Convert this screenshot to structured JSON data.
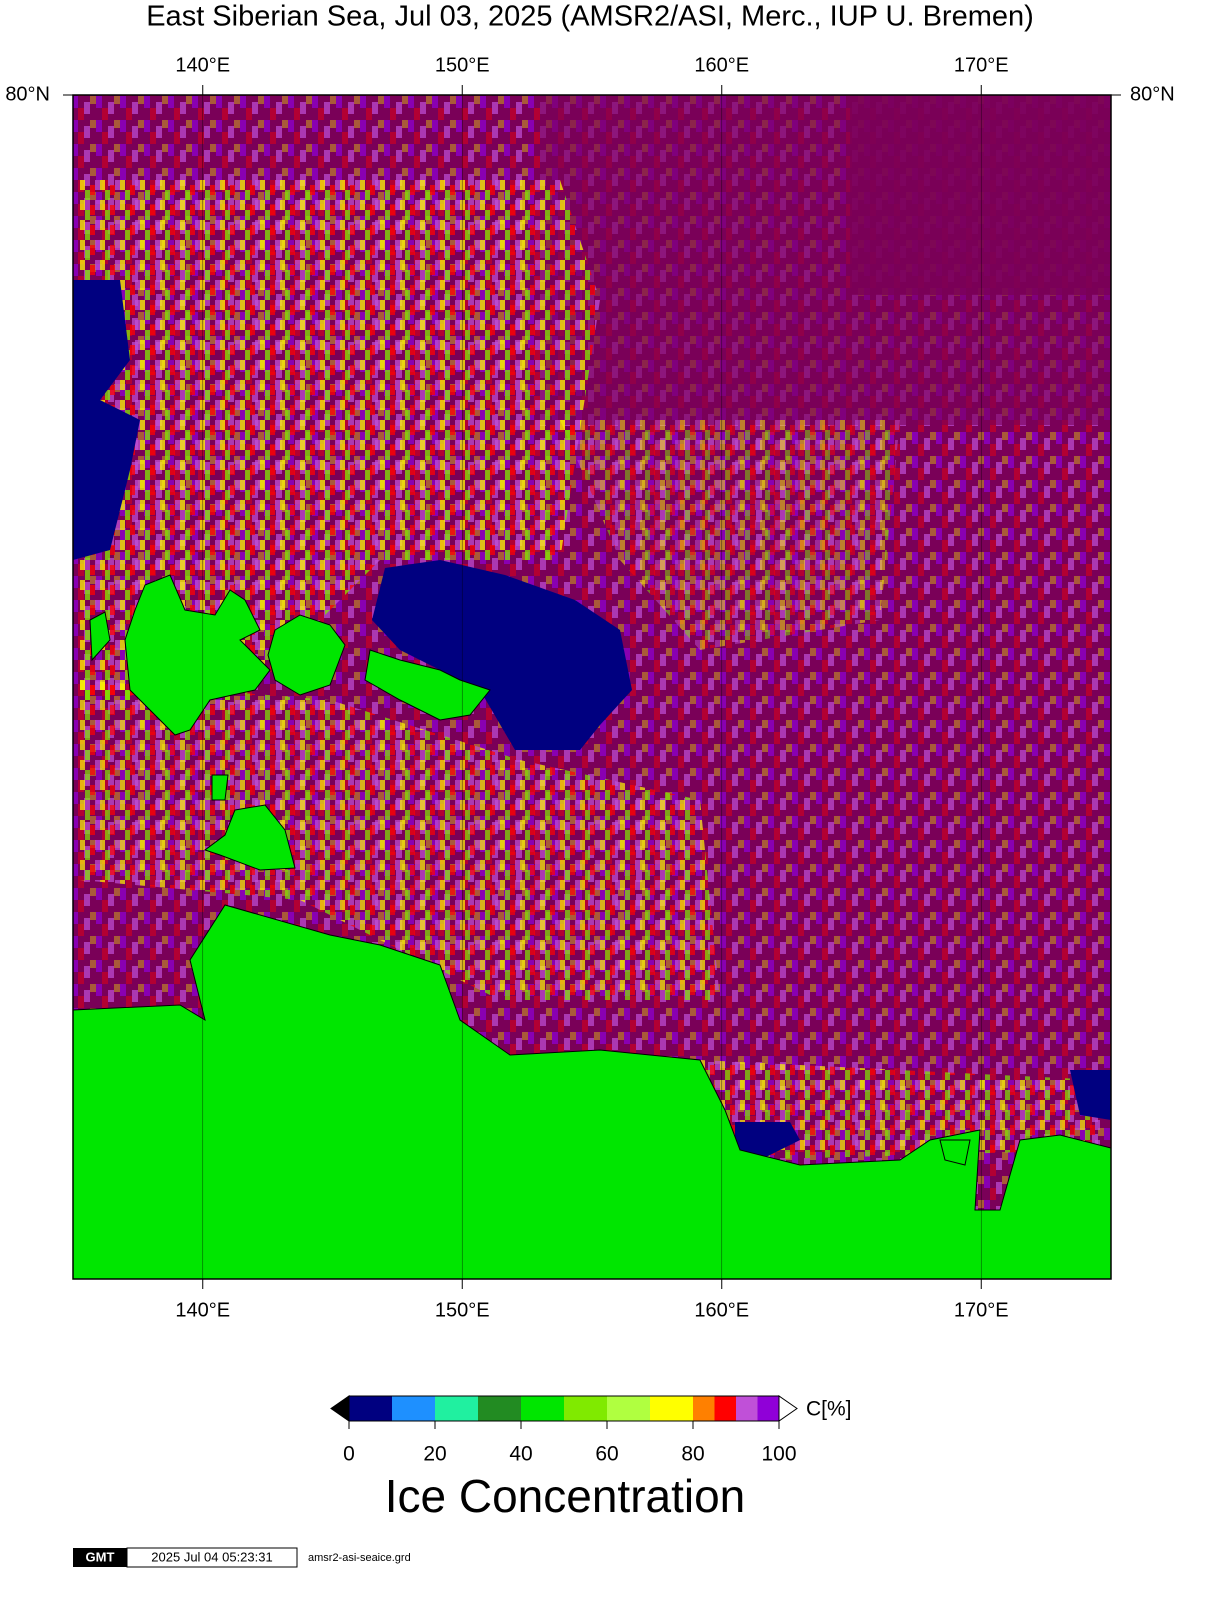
{
  "map": {
    "title": "East Siberian Sea, Jul 03, 2025 (AMSR2/ASI, Merc., IUP U. Bremen)",
    "lonlim": [
      135,
      175
    ],
    "lonticks": [
      {
        "value": 140,
        "label": "140°E"
      },
      {
        "value": 150,
        "label": "150°E"
      },
      {
        "value": 160,
        "label": "160°E"
      },
      {
        "value": 170,
        "label": "170°E"
      }
    ],
    "latticks": [
      {
        "value": 80,
        "label": "80°N"
      }
    ],
    "colorbar": {
      "unit": "C[%]",
      "label": "Ice Concentration",
      "lim": [
        0,
        100
      ],
      "ticks": [
        0,
        20,
        40,
        60,
        80,
        100
      ],
      "bins": [
        0,
        10,
        20,
        30,
        40,
        50,
        60,
        70,
        80,
        85,
        90,
        95,
        100
      ],
      "colors": [
        "#000080",
        "#1e90ff",
        "#20f0a0",
        "#228b22",
        "#00e600",
        "#80ea00",
        "#b0ff40",
        "#ffff00",
        "#ff8000",
        "#ff0000",
        "#c050d8",
        "#9000d8"
      ]
    },
    "footer": {
      "logo": "GMT",
      "timestamp": "2025 Jul 04 05:23:31",
      "file": "amsr2-asi-seaice.grd"
    }
  }
}
